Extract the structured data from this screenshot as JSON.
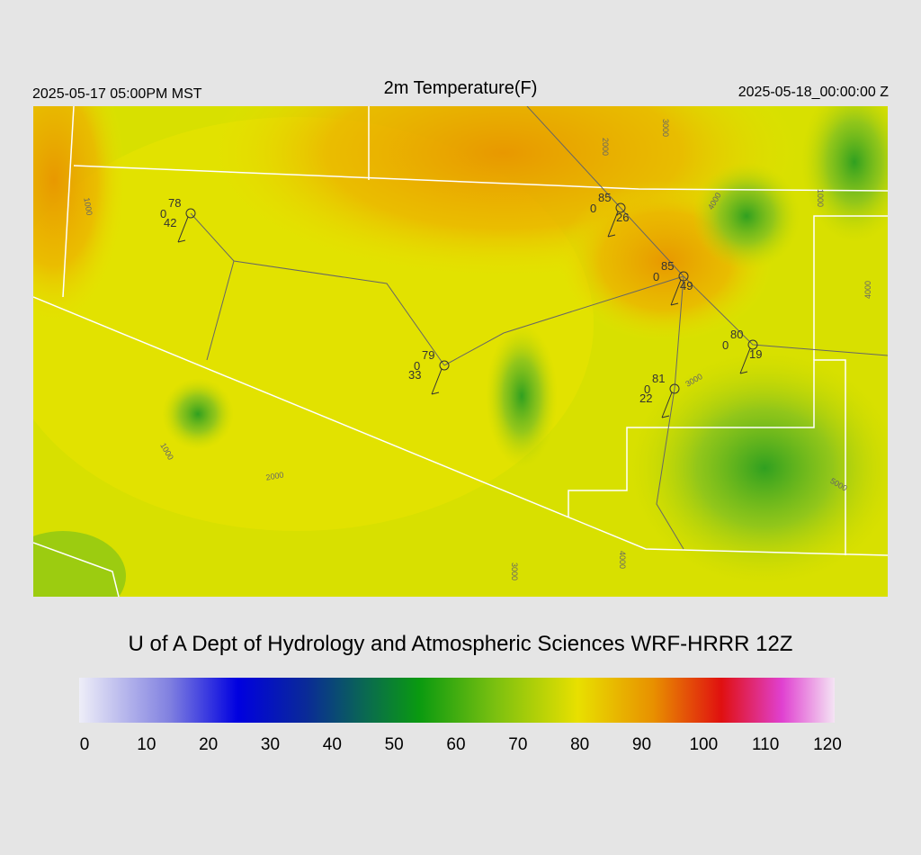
{
  "header": {
    "local_time": "2025-05-17 05:00PM MST",
    "title": "2m Temperature(F)",
    "valid_time": "2025-05-18_00:00:00 Z"
  },
  "stations": [
    {
      "temperature": 78,
      "wind": 0,
      "dewpoint": 42
    },
    {
      "temperature": 85,
      "wind": 0,
      "dewpoint": 26
    },
    {
      "temperature": 85,
      "wind": 0,
      "dewpoint": 49
    },
    {
      "temperature": 80,
      "wind": 0,
      "dewpoint": 19
    },
    {
      "temperature": 79,
      "wind": 0,
      "dewpoint": 33
    },
    {
      "temperature": 81,
      "wind": 0,
      "dewpoint": 22
    }
  ],
  "contour_labels": [
    "1000",
    "2000",
    "3000",
    "4000",
    "1000",
    "4000",
    "3000",
    "1000",
    "2000",
    "5000",
    "3000",
    "4000"
  ],
  "footer": {
    "credit": "U of A Dept of Hydrology and Atmospheric Sciences WRF-HRRR 12Z"
  },
  "colorbar": {
    "range": [
      0,
      120
    ],
    "ticks": [
      0,
      10,
      20,
      30,
      40,
      50,
      60,
      70,
      80,
      90,
      100,
      110,
      120
    ]
  }
}
